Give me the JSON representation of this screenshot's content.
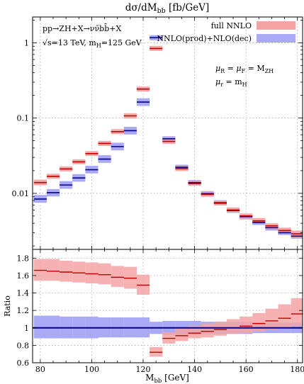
{
  "chart_data": {
    "type": "bar",
    "title": "dσ/dM",
    "title_sub": "bb",
    "title_unit": " [fb/GeV]",
    "xlabel": "M",
    "xlabel_sub": "bb",
    "xlabel_unit": " [GeV]",
    "xlim": [
      77,
      182
    ],
    "x_ticks": [
      80,
      100,
      120,
      140,
      160,
      180
    ],
    "annotations": {
      "process": "pp→ZH+X→νν̄bb̄+X",
      "energy": "√s=13 TeV, m",
      "energy_sub": "H",
      "energy_tail": "=125 GeV",
      "mu_r_f": "μ",
      "mu_r_sub": "R",
      "mu_mid": " = μ",
      "mu_f_sub": "F",
      "mu_eq": " = M",
      "mu_zh_sub": "ZH",
      "mu_r2": "μ",
      "mu_r2_sub": "r",
      "mu_r2_eq": " = m",
      "mu_r2_h": "H"
    },
    "legend": {
      "position": "top-right",
      "items": [
        {
          "label": "full NNLO",
          "color": "#f4a4a4",
          "line": "#c00000"
        },
        {
          "label": "NNLO(prod)+NLO(dec)",
          "color": "#a9a9f5",
          "line": "#00008b"
        }
      ]
    },
    "upper": {
      "scale": "log",
      "ylim": [
        0.0018,
        2.2
      ],
      "y_ticks": [
        {
          "v": 1,
          "label": "1"
        },
        {
          "v": 0.1,
          "label": "0.1"
        },
        {
          "v": 0.01,
          "label": "0.01"
        }
      ],
      "grid": true,
      "bins": [
        {
          "x0": 77.5,
          "x1": 82.5,
          "red": 0.0139,
          "red_lo": 0.0128,
          "red_hi": 0.0152,
          "blue": 0.0084,
          "blue_lo": 0.0075,
          "blue_hi": 0.0095
        },
        {
          "x0": 82.5,
          "x1": 87.5,
          "red": 0.0168,
          "red_lo": 0.0156,
          "red_hi": 0.0182,
          "blue": 0.0102,
          "blue_lo": 0.0091,
          "blue_hi": 0.0114
        },
        {
          "x0": 87.5,
          "x1": 92.5,
          "red": 0.0211,
          "red_lo": 0.0196,
          "red_hi": 0.0228,
          "blue": 0.0129,
          "blue_lo": 0.0115,
          "blue_hi": 0.0145
        },
        {
          "x0": 92.5,
          "x1": 97.5,
          "red": 0.0262,
          "red_lo": 0.0243,
          "red_hi": 0.0283,
          "blue": 0.016,
          "blue_lo": 0.0143,
          "blue_hi": 0.018
        },
        {
          "x0": 97.5,
          "x1": 102.5,
          "red": 0.0337,
          "red_lo": 0.0313,
          "red_hi": 0.0364,
          "blue": 0.0206,
          "blue_lo": 0.0184,
          "blue_hi": 0.0232
        },
        {
          "x0": 102.5,
          "x1": 107.5,
          "red": 0.046,
          "red_lo": 0.0426,
          "red_hi": 0.0497,
          "blue": 0.0285,
          "blue_lo": 0.0254,
          "blue_hi": 0.0321
        },
        {
          "x0": 107.5,
          "x1": 112.5,
          "red": 0.066,
          "red_lo": 0.0612,
          "red_hi": 0.0713,
          "blue": 0.0418,
          "blue_lo": 0.0372,
          "blue_hi": 0.047
        },
        {
          "x0": 112.5,
          "x1": 117.5,
          "red": 0.107,
          "red_lo": 0.099,
          "red_hi": 0.116,
          "blue": 0.068,
          "blue_lo": 0.0605,
          "blue_hi": 0.0765
        },
        {
          "x0": 117.5,
          "x1": 122.5,
          "red": 0.243,
          "red_lo": 0.225,
          "red_hi": 0.262,
          "blue": 0.163,
          "blue_lo": 0.145,
          "blue_hi": 0.183
        },
        {
          "x0": 122.5,
          "x1": 127.5,
          "red": 0.84,
          "red_lo": 0.78,
          "red_hi": 0.91,
          "blue": 1.17,
          "blue_lo": 1.08,
          "blue_hi": 1.26
        },
        {
          "x0": 127.5,
          "x1": 132.5,
          "red": 0.049,
          "red_lo": 0.0455,
          "red_hi": 0.0529,
          "blue": 0.053,
          "blue_lo": 0.049,
          "blue_hi": 0.0573
        },
        {
          "x0": 132.5,
          "x1": 137.5,
          "red": 0.0213,
          "red_lo": 0.0198,
          "red_hi": 0.023,
          "blue": 0.0222,
          "blue_lo": 0.0205,
          "blue_hi": 0.024
        },
        {
          "x0": 137.5,
          "x1": 142.5,
          "red": 0.0135,
          "red_lo": 0.0126,
          "red_hi": 0.0146,
          "blue": 0.0139,
          "blue_lo": 0.0129,
          "blue_hi": 0.015
        },
        {
          "x0": 142.5,
          "x1": 147.5,
          "red": 0.0097,
          "red_lo": 0.009,
          "red_hi": 0.0105,
          "blue": 0.0099,
          "blue_lo": 0.0092,
          "blue_hi": 0.0107
        },
        {
          "x0": 147.5,
          "x1": 152.5,
          "red": 0.0074,
          "red_lo": 0.0069,
          "red_hi": 0.008,
          "blue": 0.0075,
          "blue_lo": 0.007,
          "blue_hi": 0.0081
        },
        {
          "x0": 152.5,
          "x1": 157.5,
          "red": 0.006,
          "red_lo": 0.0056,
          "red_hi": 0.0065,
          "blue": 0.0059,
          "blue_lo": 0.0055,
          "blue_hi": 0.0064
        },
        {
          "x0": 157.5,
          "x1": 162.5,
          "red": 0.005,
          "red_lo": 0.0046,
          "red_hi": 0.0054,
          "blue": 0.0049,
          "blue_lo": 0.0045,
          "blue_hi": 0.0053
        },
        {
          "x0": 162.5,
          "x1": 167.5,
          "red": 0.0043,
          "red_lo": 0.004,
          "red_hi": 0.0047,
          "blue": 0.0041,
          "blue_lo": 0.0038,
          "blue_hi": 0.0045
        },
        {
          "x0": 167.5,
          "x1": 172.5,
          "red": 0.0037,
          "red_lo": 0.0034,
          "red_hi": 0.004,
          "blue": 0.0035,
          "blue_lo": 0.0032,
          "blue_hi": 0.0038
        },
        {
          "x0": 172.5,
          "x1": 177.5,
          "red": 0.0032,
          "red_lo": 0.0029,
          "red_hi": 0.0035,
          "blue": 0.003,
          "blue_lo": 0.0028,
          "blue_hi": 0.0033
        },
        {
          "x0": 177.5,
          "x1": 182.5,
          "red": 0.0029,
          "red_lo": 0.0026,
          "red_hi": 0.0032,
          "blue": 0.0027,
          "blue_lo": 0.0025,
          "blue_hi": 0.003
        }
      ]
    },
    "lower": {
      "ylabel": "Ratio",
      "ylim": [
        0.6,
        1.9
      ],
      "y_ticks": [
        0.6,
        0.8,
        1,
        1.2,
        1.4,
        1.6,
        1.8
      ],
      "grid": true,
      "bins": [
        {
          "x0": 77.5,
          "x1": 82.5,
          "red": 1.66,
          "red_lo": 1.54,
          "red_hi": 1.79,
          "blue_lo": 0.88,
          "blue_hi": 1.14
        },
        {
          "x0": 82.5,
          "x1": 87.5,
          "red": 1.65,
          "red_lo": 1.54,
          "red_hi": 1.79,
          "blue_lo": 0.88,
          "blue_hi": 1.14
        },
        {
          "x0": 87.5,
          "x1": 92.5,
          "red": 1.64,
          "red_lo": 1.53,
          "red_hi": 1.77,
          "blue_lo": 0.88,
          "blue_hi": 1.13
        },
        {
          "x0": 92.5,
          "x1": 97.5,
          "red": 1.63,
          "red_lo": 1.52,
          "red_hi": 1.76,
          "blue_lo": 0.88,
          "blue_hi": 1.13
        },
        {
          "x0": 97.5,
          "x1": 102.5,
          "red": 1.62,
          "red_lo": 1.51,
          "red_hi": 1.75,
          "blue_lo": 0.88,
          "blue_hi": 1.13
        },
        {
          "x0": 102.5,
          "x1": 107.5,
          "red": 1.61,
          "red_lo": 1.5,
          "red_hi": 1.74,
          "blue_lo": 0.89,
          "blue_hi": 1.12
        },
        {
          "x0": 107.5,
          "x1": 112.5,
          "red": 1.58,
          "red_lo": 1.47,
          "red_hi": 1.71,
          "blue_lo": 0.89,
          "blue_hi": 1.12
        },
        {
          "x0": 112.5,
          "x1": 117.5,
          "red": 1.57,
          "red_lo": 1.45,
          "red_hi": 1.7,
          "blue_lo": 0.89,
          "blue_hi": 1.12
        },
        {
          "x0": 117.5,
          "x1": 122.5,
          "red": 1.49,
          "red_lo": 1.38,
          "red_hi": 1.61,
          "blue_lo": 0.89,
          "blue_hi": 1.12
        },
        {
          "x0": 122.5,
          "x1": 127.5,
          "red": 0.72,
          "red_lo": 0.67,
          "red_hi": 0.78,
          "blue_lo": 0.93,
          "blue_hi": 1.07
        },
        {
          "x0": 127.5,
          "x1": 132.5,
          "red": 0.88,
          "red_lo": 0.82,
          "red_hi": 0.95,
          "blue_lo": 0.92,
          "blue_hi": 1.08
        },
        {
          "x0": 132.5,
          "x1": 137.5,
          "red": 0.91,
          "red_lo": 0.85,
          "red_hi": 0.99,
          "blue_lo": 0.92,
          "blue_hi": 1.08
        },
        {
          "x0": 137.5,
          "x1": 142.5,
          "red": 0.94,
          "red_lo": 0.88,
          "red_hi": 1.02,
          "blue_lo": 0.92,
          "blue_hi": 1.08
        },
        {
          "x0": 142.5,
          "x1": 147.5,
          "red": 0.96,
          "red_lo": 0.89,
          "red_hi": 1.05,
          "blue_lo": 0.93,
          "blue_hi": 1.07
        },
        {
          "x0": 147.5,
          "x1": 152.5,
          "red": 0.98,
          "red_lo": 0.91,
          "red_hi": 1.07,
          "blue_lo": 0.93,
          "blue_hi": 1.07
        },
        {
          "x0": 152.5,
          "x1": 157.5,
          "red": 1.0,
          "red_lo": 0.93,
          "red_hi": 1.1,
          "blue_lo": 0.93,
          "blue_hi": 1.07
        },
        {
          "x0": 157.5,
          "x1": 162.5,
          "red": 1.02,
          "red_lo": 0.94,
          "red_hi": 1.13,
          "blue_lo": 0.93,
          "blue_hi": 1.07
        },
        {
          "x0": 162.5,
          "x1": 167.5,
          "red": 1.05,
          "red_lo": 0.96,
          "red_hi": 1.17,
          "blue_lo": 0.94,
          "blue_hi": 1.06
        },
        {
          "x0": 167.5,
          "x1": 172.5,
          "red": 1.08,
          "red_lo": 0.98,
          "red_hi": 1.22,
          "blue_lo": 0.94,
          "blue_hi": 1.06
        },
        {
          "x0": 172.5,
          "x1": 177.5,
          "red": 1.11,
          "red_lo": 1.0,
          "red_hi": 1.27,
          "blue_lo": 0.94,
          "blue_hi": 1.06
        },
        {
          "x0": 177.5,
          "x1": 182.5,
          "red": 1.16,
          "red_lo": 1.02,
          "red_hi": 1.34,
          "blue_lo": 0.94,
          "blue_hi": 1.06
        }
      ]
    }
  }
}
